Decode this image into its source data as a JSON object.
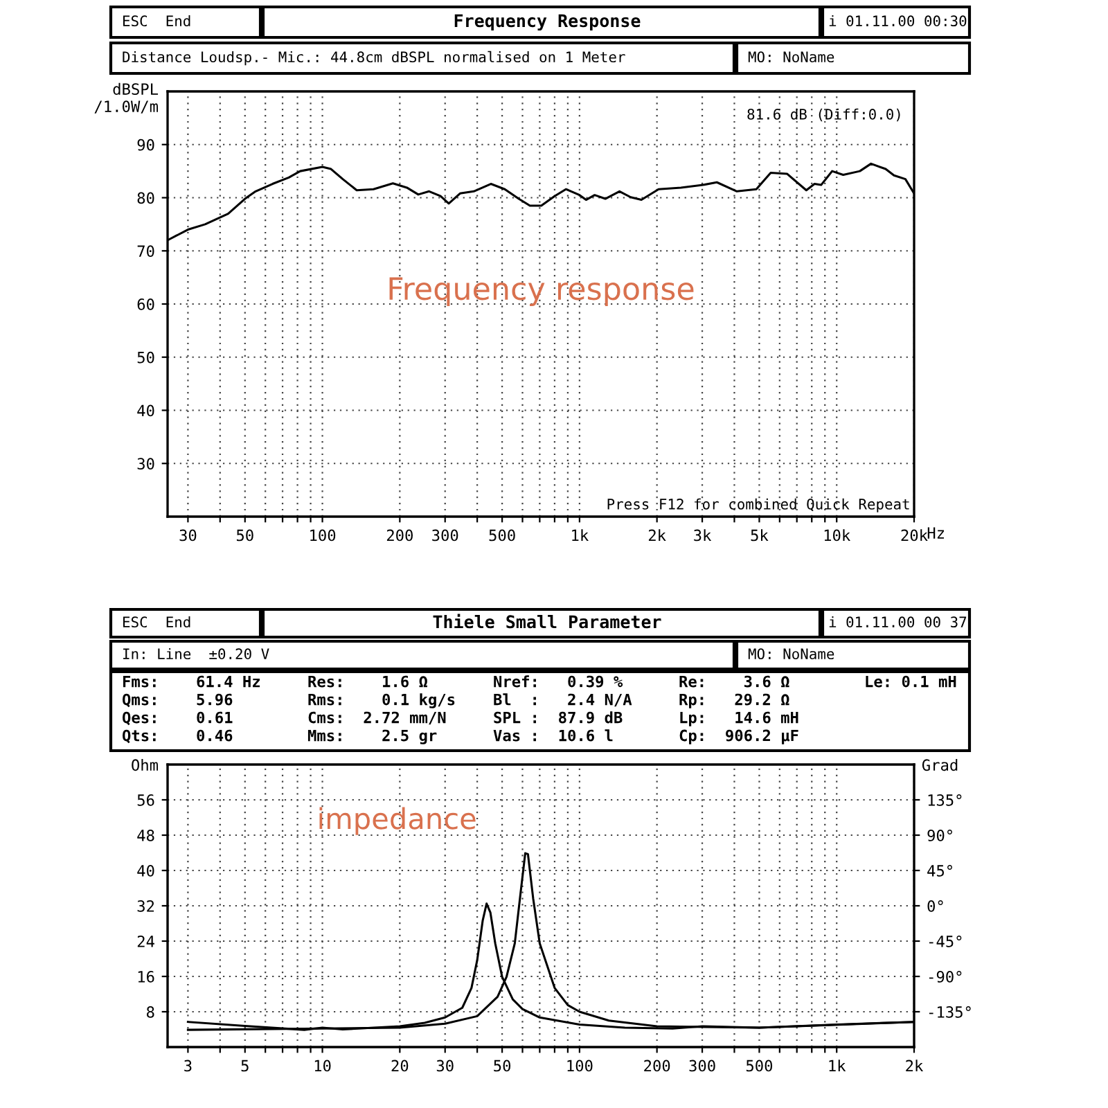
{
  "chart_data": [
    {
      "type": "line",
      "title": "Frequency Response",
      "ylabel": "dBSPL\n/1.0W/m",
      "log": "x",
      "grid": true,
      "line_style": "solid",
      "annotations": [
        "ESC  End",
        "i 01.11.00 00:30",
        "Distance Loudsp.- Mic.: 44.8cm dBSPL normalised on 1 Meter",
        "MO: NoName",
        "81.6 dB (Diff:0.0)",
        "Press F12 for combined Quick Repeat",
        "Frequency response"
      ],
      "xlim": [
        25,
        20000
      ],
      "ylim": [
        20,
        100
      ],
      "xticks": [
        30,
        {
          "value": 40,
          "label": null
        },
        50,
        {
          "value": 60,
          "label": null
        },
        {
          "value": 70,
          "label": null
        },
        {
          "value": 80,
          "label": null
        },
        {
          "value": 90,
          "label": null
        },
        100,
        200,
        300,
        {
          "value": 400,
          "label": null
        },
        500,
        {
          "value": 600,
          "label": null
        },
        {
          "value": 700,
          "label": null
        },
        {
          "value": 800,
          "label": null
        },
        {
          "value": 900,
          "label": null
        },
        {
          "value": 1000,
          "label": "1k"
        },
        {
          "value": 2000,
          "label": "2k"
        },
        {
          "value": 3000,
          "label": "3k"
        },
        {
          "value": 4000,
          "label": null
        },
        {
          "value": 5000,
          "label": "5k"
        },
        {
          "value": 6000,
          "label": null
        },
        {
          "value": 7000,
          "label": null
        },
        {
          "value": 8000,
          "label": null
        },
        {
          "value": 9000,
          "label": null
        },
        {
          "value": 10000,
          "label": "10k"
        },
        {
          "value": 20000,
          "label": "20k"
        }
      ],
      "xlabel": "Hz",
      "yticks": [
        30,
        40,
        50,
        60,
        70,
        80,
        90
      ],
      "series": [
        {
          "color": "#000000",
          "x": [
            25,
            30,
            35,
            43,
            50,
            55,
            64,
            74,
            82,
            100,
            108,
            120,
            136,
            158,
            188,
            213,
            236,
            260,
            288,
            310,
            343,
            388,
            452,
            512,
            580,
            641,
            710,
            800,
            885,
            1000,
            1060,
            1145,
            1260,
            1430,
            1580,
            1740,
            2030,
            2480,
            3020,
            3420,
            4090,
            4870,
            5540,
            6410,
            7620,
            8200,
            8700,
            9600,
            10600,
            12300,
            13600,
            15500,
            16700,
            18500,
            20000
          ],
          "values": [
            72,
            74,
            75,
            77,
            79.8,
            81.2,
            82.6,
            83.8,
            85,
            85.8,
            85.4,
            83.5,
            81.4,
            81.6,
            82.7,
            81.9,
            80.6,
            81.2,
            80.3,
            78.9,
            80.8,
            81.2,
            82.6,
            81.6,
            79.8,
            78.5,
            78.5,
            80.3,
            81.6,
            80.5,
            79.6,
            80.5,
            79.8,
            81.2,
            80.1,
            79.6,
            81.6,
            81.9,
            82.4,
            82.9,
            81.2,
            81.6,
            84.7,
            84.5,
            81.4,
            82.6,
            82.4,
            85,
            84.3,
            85,
            86.4,
            85.4,
            84.2,
            83.5,
            80.8
          ]
        }
      ]
    },
    {
      "type": "line",
      "title": "Thiele Small Parameter",
      "ylabel": "Ohm",
      "y2label": "Grad",
      "log": "x",
      "grid": true,
      "line_style": "solid",
      "annotations": [
        "ESC  End",
        "i 01.11.00 00 37",
        "In: Line  ±0.20 V",
        "MO: NoName",
        "Fms:    61.4 Hz",
        "Qms:    5.96",
        "Qes:    0.61",
        "Qts:    0.46",
        "Res:    1.6 Ω",
        "Rms:    0.1 kg/s",
        "Cms:  2.72 mm/N",
        "Mms:    2.5 gr",
        "Nref:   0.39 %",
        "Bl  :   2.4 N/A",
        "SPL :  87.9 dB",
        "Vas :  10.6 l",
        "Re:    3.6 Ω",
        "Rp:   29.2 Ω",
        "Lp:   14.6 mH",
        "Cp:  906.2 µF",
        "Le: 0.1 mH",
        "impedance"
      ],
      "xlim": [
        2.5,
        2000
      ],
      "ylim": [
        0,
        64
      ],
      "y2lim": [
        -180,
        180
      ],
      "xticks": [
        3,
        {
          "value": 4,
          "label": null
        },
        5,
        {
          "value": 6,
          "label": null
        },
        {
          "value": 7,
          "label": null
        },
        {
          "value": 8,
          "label": null
        },
        {
          "value": 9,
          "label": null
        },
        10,
        20,
        30,
        {
          "value": 40,
          "label": null
        },
        50,
        {
          "value": 60,
          "label": null
        },
        {
          "value": 70,
          "label": null
        },
        {
          "value": 80,
          "label": null
        },
        {
          "value": 90,
          "label": null
        },
        100,
        200,
        300,
        {
          "value": 400,
          "label": null
        },
        500,
        {
          "value": 600,
          "label": null
        },
        {
          "value": 700,
          "label": null
        },
        {
          "value": 800,
          "label": null
        },
        {
          "value": 900,
          "label": null
        },
        {
          "value": 1000,
          "label": "1k"
        },
        {
          "value": 2000,
          "label": "2k"
        }
      ],
      "yticks": [
        8,
        16,
        24,
        32,
        40,
        48,
        56
      ],
      "y2ticks": [
        {
          "value": 135,
          "label": "135°"
        },
        {
          "value": 90,
          "label": "90°"
        },
        {
          "value": 45,
          "label": "45°"
        },
        {
          "value": 0,
          "label": "0°"
        },
        {
          "value": -45,
          "label": "-45°"
        },
        {
          "value": -90,
          "label": "-90°"
        },
        {
          "value": -135,
          "label": "-135°"
        }
      ],
      "series": [
        {
          "color": "#000000",
          "x": [
            3,
            5,
            8.5,
            10,
            12,
            20,
            25,
            30,
            35,
            38,
            40,
            42,
            43.5,
            45,
            47,
            50,
            55,
            60,
            70,
            100,
            150,
            230,
            300,
            500,
            1000,
            2000
          ],
          "values": [
            5.7,
            4.8,
            3.9,
            4.4,
            4.0,
            4.7,
            5.5,
            6.7,
            8.9,
            13.4,
            19.7,
            28.6,
            32.5,
            30.5,
            23.5,
            15.9,
            10.8,
            8.6,
            6.7,
            5.1,
            4.4,
            4.2,
            4.7,
            4.4,
            5.1,
            5.7
          ]
        },
        {
          "color": "#000000",
          "x": [
            3,
            10,
            20,
            30,
            40,
            48,
            52,
            56,
            59,
            61.5,
            63,
            66,
            70,
            80,
            90,
            100,
            130,
            200,
            500,
            2000
          ],
          "values": [
            3.9,
            4.2,
            4.4,
            5.3,
            7.0,
            11.4,
            15.9,
            23.5,
            35,
            43.9,
            43.7,
            33.7,
            23.5,
            13.4,
            9.5,
            8,
            6,
            4.7,
            4.4,
            5.7
          ]
        }
      ]
    }
  ]
}
